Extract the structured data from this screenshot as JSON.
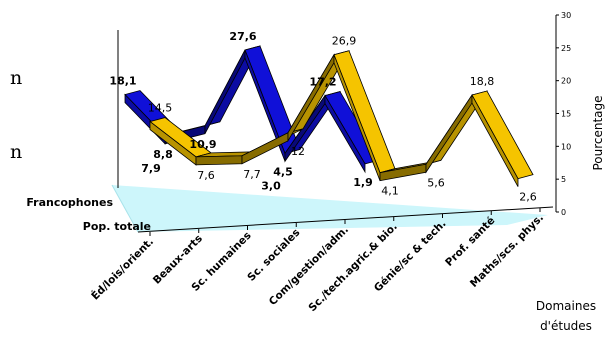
{
  "chart_data": {
    "type": "line",
    "title": "",
    "categories": [
      "Éd/lois/orient.",
      "Beaux-arts",
      "Sc. humaines",
      "Sc. sociales",
      "Com/gestion/adm.",
      "Sc./tech.agric.& bio.",
      "Génie/sc & tech.",
      "Prof. santé",
      "Maths/scs. phys."
    ],
    "series": [
      {
        "name": "Francophones",
        "values": [
          18.1,
          8.8,
          10.9,
          27.6,
          4.5,
          17.2,
          1.9,
          null,
          null
        ],
        "color": "#1010d8"
      },
      {
        "name": "Pop. totale",
        "values": [
          14.5,
          7.6,
          7.7,
          12.0,
          26.9,
          4.1,
          5.6,
          18.8,
          2.6
        ],
        "color": "#f5c400"
      }
    ],
    "extra_labels": [
      {
        "text": "7,9",
        "series": 0
      },
      {
        "text": "3,0",
        "series": 0
      }
    ],
    "xlabel": "Domaines d'études",
    "ylabel": "Pourcentage",
    "ylim": [
      0,
      30
    ],
    "yticks": [
      "0",
      "5",
      "10",
      "15",
      "20",
      "25",
      "30"
    ],
    "legend_position": "left",
    "grid": false
  },
  "axis": {
    "xlabel_line1": "Domaines",
    "xlabel_line2": "d'études"
  },
  "left_text": {
    "a": "n",
    "b": "n"
  }
}
